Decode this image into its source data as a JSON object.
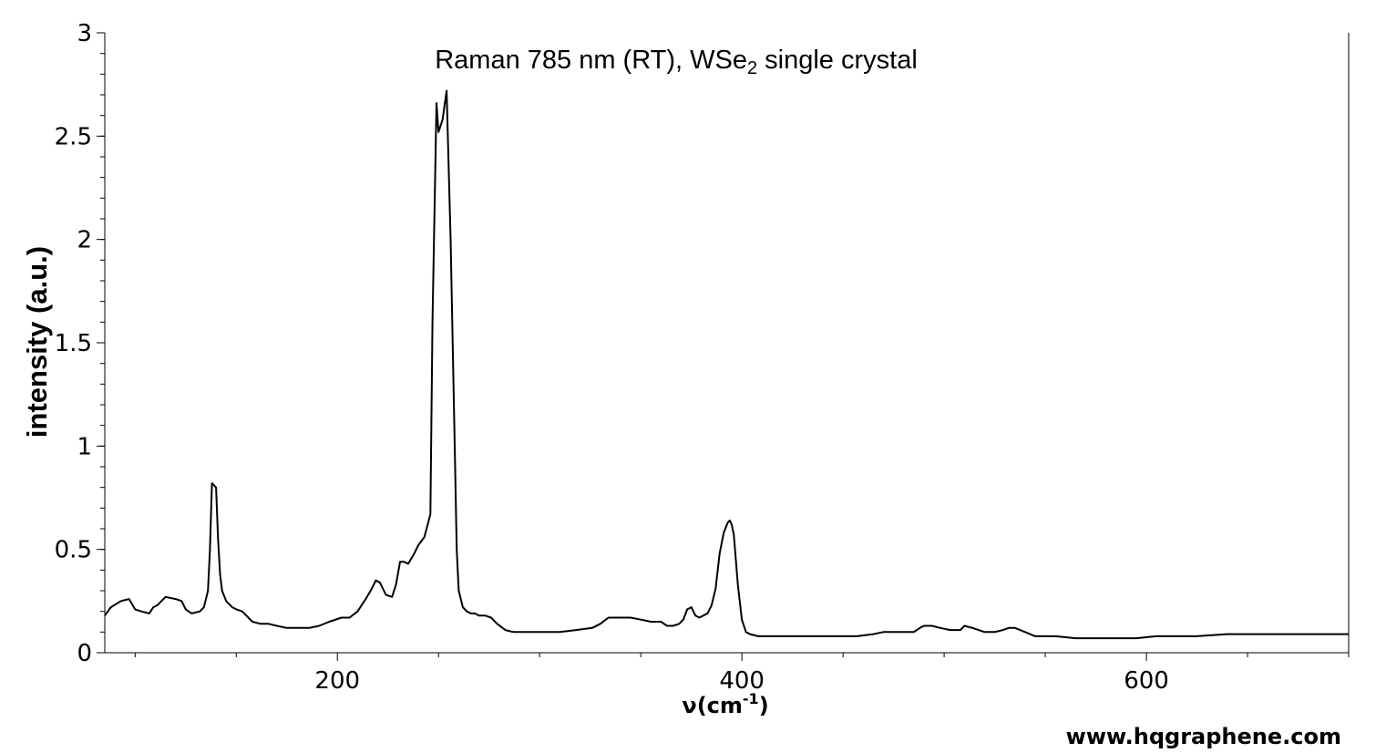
{
  "chart_data": {
    "type": "line",
    "title": {
      "main": "Raman 785 nm (RT), WSe",
      "subscript": "2",
      "suffix": " single crystal"
    },
    "xlabel": {
      "main": "ν(cm",
      "superscript": "-1",
      "suffix": ")"
    },
    "ylabel": "intensity (a.u.)",
    "xlim": [
      85,
      700
    ],
    "ylim": [
      0,
      3
    ],
    "x_ticks": [
      200,
      400,
      600
    ],
    "y_ticks": [
      0,
      0.5,
      1,
      1.5,
      2,
      2.5,
      3
    ],
    "y_tick_labels": [
      "0",
      "0.5",
      "1",
      "1.5",
      "2",
      "2.5",
      "3"
    ],
    "x_tick_labels": [
      "200",
      "400",
      "600"
    ],
    "grid": false,
    "line_color": "#000000",
    "series": [
      {
        "x": [
          85,
          88,
          93,
          97,
          100,
          103,
          107,
          109,
          111,
          115,
          120,
          123,
          125,
          128,
          132,
          134,
          136,
          137,
          138,
          139,
          140,
          141,
          142,
          143,
          145,
          148,
          150,
          153,
          156,
          158,
          162,
          166,
          170,
          175,
          180,
          186,
          191,
          196,
          202,
          206,
          210,
          214,
          217,
          219,
          221,
          224,
          227,
          229,
          231,
          233,
          235,
          238,
          240,
          243,
          246,
          247,
          249,
          250,
          252,
          254,
          256,
          258,
          259,
          260,
          262,
          264,
          266,
          268,
          270,
          273,
          276,
          279,
          283,
          287,
          290,
          295,
          302,
          310,
          318,
          326,
          330,
          334,
          338,
          342,
          345,
          350,
          355,
          360,
          363,
          366,
          369,
          371,
          373,
          375,
          377,
          379,
          381,
          383,
          385,
          387,
          389,
          391,
          393,
          394,
          395,
          396,
          397,
          398,
          400,
          402,
          404,
          408,
          412,
          418,
          425,
          433,
          441,
          449,
          457,
          465,
          470,
          478,
          485,
          488,
          490,
          494,
          498,
          503,
          508,
          510,
          514,
          520,
          525,
          529,
          532,
          535,
          540,
          545,
          555,
          565,
          575,
          585,
          595,
          605,
          615,
          625,
          640,
          655,
          670,
          685,
          700
        ],
        "y": [
          0.18,
          0.22,
          0.25,
          0.26,
          0.21,
          0.2,
          0.19,
          0.22,
          0.23,
          0.27,
          0.26,
          0.25,
          0.21,
          0.19,
          0.2,
          0.22,
          0.3,
          0.5,
          0.82,
          0.81,
          0.8,
          0.55,
          0.38,
          0.3,
          0.25,
          0.22,
          0.21,
          0.2,
          0.17,
          0.15,
          0.14,
          0.14,
          0.13,
          0.12,
          0.12,
          0.12,
          0.13,
          0.15,
          0.17,
          0.17,
          0.2,
          0.26,
          0.31,
          0.35,
          0.34,
          0.28,
          0.27,
          0.33,
          0.44,
          0.44,
          0.43,
          0.48,
          0.52,
          0.56,
          0.67,
          1.6,
          2.66,
          2.52,
          2.58,
          2.72,
          2.0,
          1.0,
          0.5,
          0.3,
          0.22,
          0.2,
          0.19,
          0.19,
          0.18,
          0.18,
          0.17,
          0.14,
          0.11,
          0.1,
          0.1,
          0.1,
          0.1,
          0.1,
          0.11,
          0.12,
          0.14,
          0.17,
          0.17,
          0.17,
          0.17,
          0.16,
          0.15,
          0.15,
          0.13,
          0.13,
          0.14,
          0.16,
          0.21,
          0.22,
          0.18,
          0.17,
          0.18,
          0.19,
          0.23,
          0.31,
          0.48,
          0.58,
          0.63,
          0.64,
          0.62,
          0.57,
          0.45,
          0.33,
          0.16,
          0.1,
          0.09,
          0.08,
          0.08,
          0.08,
          0.08,
          0.08,
          0.08,
          0.08,
          0.08,
          0.09,
          0.1,
          0.1,
          0.1,
          0.12,
          0.13,
          0.13,
          0.12,
          0.11,
          0.11,
          0.13,
          0.12,
          0.1,
          0.1,
          0.11,
          0.12,
          0.12,
          0.1,
          0.08,
          0.08,
          0.07,
          0.07,
          0.07,
          0.07,
          0.08,
          0.08,
          0.08,
          0.09,
          0.09,
          0.09,
          0.09,
          0.09
        ]
      }
    ]
  },
  "watermark": "www.hqgraphene.com"
}
